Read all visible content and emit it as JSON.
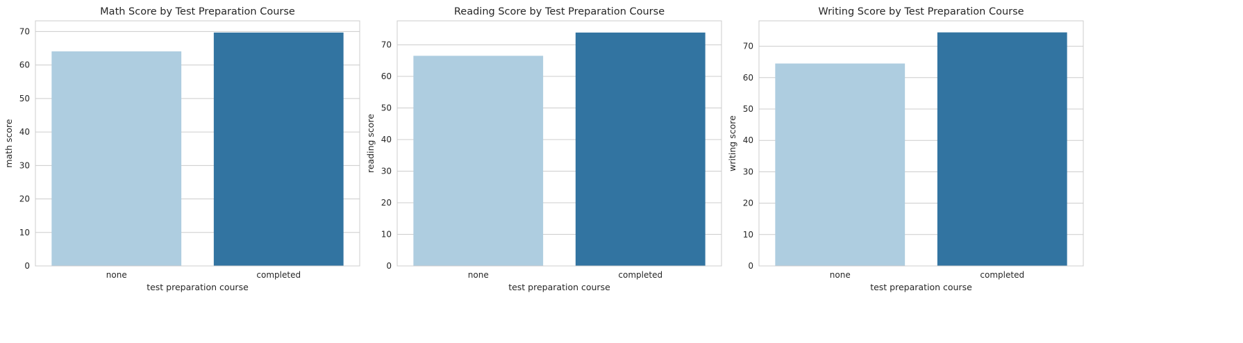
{
  "palette": {
    "none": "#aecde0",
    "completed": "#3274a1",
    "grid": "#cccccc",
    "text": "#262626"
  },
  "chart_data": [
    {
      "type": "bar",
      "title": "Math Score by Test Preparation Course",
      "xlabel": "test preparation course",
      "ylabel": "math score",
      "categories": [
        "none",
        "completed"
      ],
      "values": [
        64.08,
        69.7
      ],
      "ylim": [
        0,
        73.2
      ],
      "yticks": [
        0,
        10,
        20,
        30,
        40,
        50,
        60,
        70
      ],
      "grid": true
    },
    {
      "type": "bar",
      "title": "Reading Score by Test Preparation Course",
      "xlabel": "test preparation course",
      "ylabel": "reading score",
      "categories": [
        "none",
        "completed"
      ],
      "values": [
        66.53,
        73.89
      ],
      "ylim": [
        0,
        77.6
      ],
      "yticks": [
        0,
        10,
        20,
        30,
        40,
        50,
        60,
        70
      ],
      "grid": true
    },
    {
      "type": "bar",
      "title": "Writing Score by Test Preparation Course",
      "xlabel": "test preparation course",
      "ylabel": "writing score",
      "categories": [
        "none",
        "completed"
      ],
      "values": [
        64.5,
        74.42
      ],
      "ylim": [
        0,
        78.1
      ],
      "yticks": [
        0,
        10,
        20,
        30,
        40,
        50,
        60,
        70
      ],
      "grid": true
    }
  ]
}
